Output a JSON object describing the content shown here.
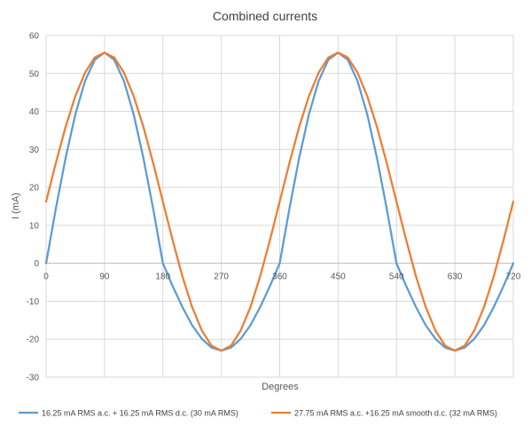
{
  "chart_data": {
    "type": "line",
    "title": "Combined currents",
    "xlabel": "Degrees",
    "ylabel": "I (mA)",
    "xlim": [
      0,
      720
    ],
    "ylim": [
      -30,
      60
    ],
    "x_ticks": [
      0,
      90,
      180,
      270,
      360,
      450,
      540,
      630,
      720
    ],
    "y_ticks": [
      -30,
      -20,
      -10,
      0,
      10,
      20,
      30,
      40,
      50,
      60
    ],
    "grid": "horizontal and vertical",
    "legend_position": "bottom",
    "series": [
      {
        "name": "16.25 mA RMS a.c. + 16.25 mA RMS d.c. (30 mA RMS)",
        "color": "#5B9BD5",
        "x": [
          0,
          15,
          30,
          45,
          60,
          75,
          90,
          105,
          120,
          135,
          150,
          165,
          180,
          195,
          210,
          225,
          240,
          255,
          270,
          285,
          300,
          315,
          330,
          345,
          360,
          375,
          390,
          405,
          420,
          435,
          450,
          465,
          480,
          495,
          510,
          525,
          540,
          555,
          570,
          585,
          600,
          615,
          630,
          645,
          660,
          675,
          690,
          705,
          720
        ],
        "y": [
          0,
          14.4,
          27.7,
          39.2,
          48.0,
          53.6,
          55.5,
          53.6,
          48.0,
          39.2,
          27.7,
          14.4,
          0,
          -6.0,
          -11.5,
          -16.3,
          -19.9,
          -22.2,
          -23.0,
          -22.2,
          -19.9,
          -16.3,
          -11.5,
          -6.0,
          0,
          14.4,
          27.7,
          39.2,
          48.0,
          53.6,
          55.5,
          53.6,
          48.0,
          39.2,
          27.7,
          14.4,
          0,
          -6.0,
          -11.5,
          -16.3,
          -19.9,
          -22.2,
          -23.0,
          -22.2,
          -19.9,
          -16.3,
          -11.5,
          -6.0,
          0
        ]
      },
      {
        "name": "27.75 mA RMS a.c. +16.25 mA smooth d.c. (32 mA RMS)",
        "color": "#ED7D31",
        "x": [
          0,
          15,
          30,
          45,
          60,
          75,
          90,
          105,
          120,
          135,
          150,
          165,
          180,
          195,
          210,
          225,
          240,
          255,
          270,
          285,
          300,
          315,
          330,
          345,
          360,
          375,
          390,
          405,
          420,
          435,
          450,
          465,
          480,
          495,
          510,
          525,
          540,
          555,
          570,
          585,
          600,
          615,
          630,
          645,
          660,
          675,
          690,
          705,
          720
        ],
        "y": [
          16.25,
          26.4,
          35.9,
          44.0,
          50.2,
          54.2,
          55.5,
          54.2,
          50.2,
          44.0,
          35.9,
          26.4,
          16.25,
          6.1,
          -3.4,
          -11.5,
          -17.7,
          -21.7,
          -23.0,
          -21.7,
          -17.7,
          -11.5,
          -3.4,
          6.1,
          16.25,
          26.4,
          35.9,
          44.0,
          50.2,
          54.2,
          55.5,
          54.2,
          50.2,
          44.0,
          35.9,
          26.4,
          16.25,
          6.1,
          -3.4,
          -11.5,
          -17.7,
          -21.7,
          -23.0,
          -21.7,
          -17.7,
          -11.5,
          -3.4,
          6.1,
          16.25
        ]
      }
    ]
  }
}
